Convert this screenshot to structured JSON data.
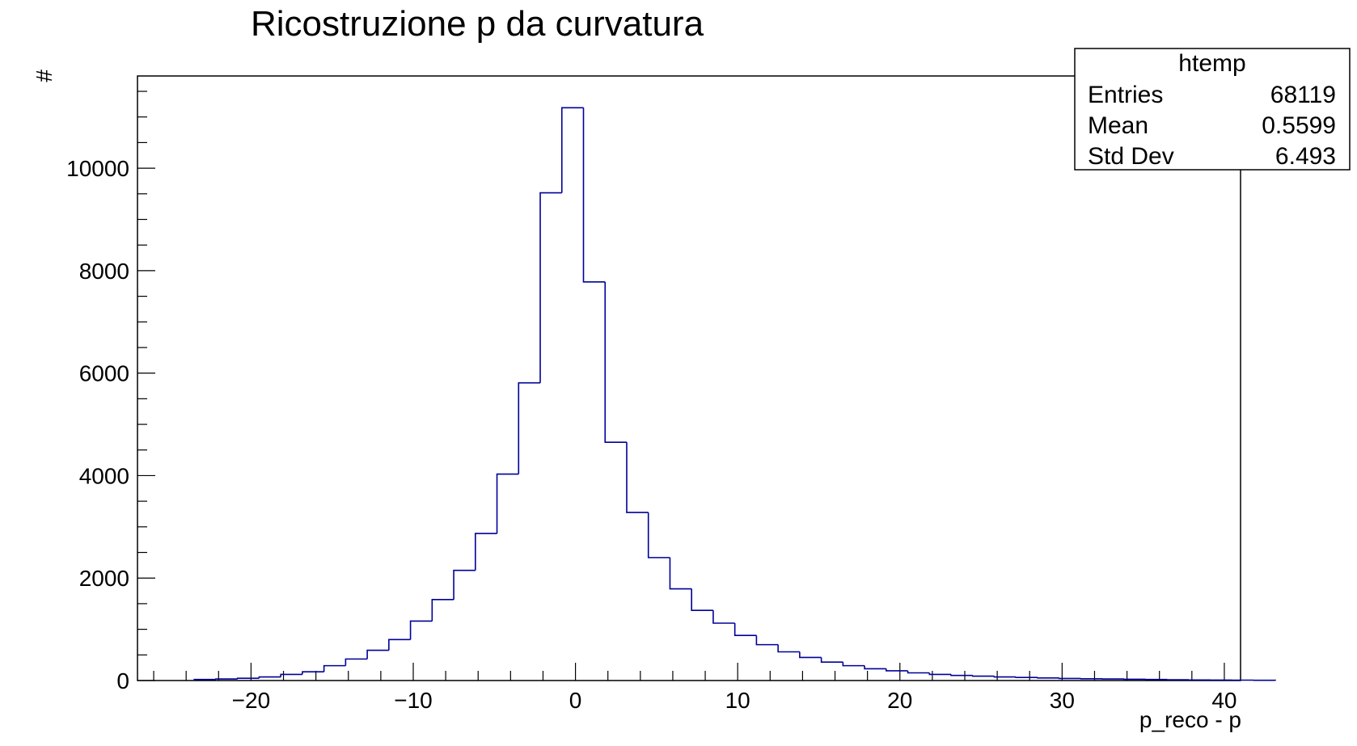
{
  "chart_data": {
    "type": "histogram",
    "title": "Ricostruzione p da curvatura",
    "xlabel": "p_reco - p",
    "ylabel": "#",
    "xlim": [
      -27,
      41
    ],
    "ylim": [
      0,
      11800
    ],
    "x_ticks": [
      -20,
      -10,
      0,
      10,
      20,
      30,
      40
    ],
    "x_tick_labels": [
      "−20",
      "−10",
      "0",
      "10",
      "20",
      "30",
      "40"
    ],
    "y_ticks": [
      0,
      2000,
      4000,
      6000,
      8000,
      10000
    ],
    "y_tick_labels": [
      "0",
      "2000",
      "4000",
      "6000",
      "8000",
      "10000"
    ],
    "grid": false,
    "line_color": "#000099",
    "bins": {
      "start": -23.5,
      "width": 1.333,
      "counts": [
        20,
        30,
        45,
        70,
        120,
        170,
        290,
        420,
        590,
        800,
        1160,
        1580,
        2150,
        2870,
        4030,
        5810,
        9520,
        11180,
        7780,
        4650,
        3280,
        2400,
        1790,
        1370,
        1120,
        880,
        700,
        560,
        450,
        360,
        290,
        230,
        190,
        150,
        120,
        100,
        85,
        70,
        60,
        50,
        40,
        35,
        30,
        25,
        20,
        15,
        12,
        10,
        8,
        5
      ]
    },
    "stats_box": {
      "name": "htemp",
      "rows": [
        {
          "label": "Entries",
          "value": "68119"
        },
        {
          "label": "Mean",
          "value": "0.5599"
        },
        {
          "label": "Std Dev",
          "value": "6.493"
        }
      ]
    }
  }
}
